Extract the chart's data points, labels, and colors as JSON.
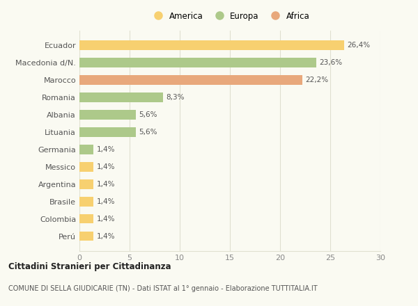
{
  "categories": [
    "Ecuador",
    "Macedonia d/N.",
    "Marocco",
    "Romania",
    "Albania",
    "Lituania",
    "Germania",
    "Messico",
    "Argentina",
    "Brasile",
    "Colombia",
    "Perú"
  ],
  "values": [
    26.4,
    23.6,
    22.2,
    8.3,
    5.6,
    5.6,
    1.4,
    1.4,
    1.4,
    1.4,
    1.4,
    1.4
  ],
  "colors": [
    "#f7d070",
    "#adc98a",
    "#e8a87c",
    "#adc98a",
    "#adc98a",
    "#adc98a",
    "#adc98a",
    "#f7d070",
    "#f7d070",
    "#f7d070",
    "#f7d070",
    "#f7d070"
  ],
  "labels": [
    "26,4%",
    "23,6%",
    "22,2%",
    "8,3%",
    "5,6%",
    "5,6%",
    "1,4%",
    "1,4%",
    "1,4%",
    "1,4%",
    "1,4%",
    "1,4%"
  ],
  "legend_labels": [
    "America",
    "Europa",
    "Africa"
  ],
  "legend_colors": [
    "#f7d070",
    "#adc98a",
    "#e8a87c"
  ],
  "title": "Cittadini Stranieri per Cittadinanza",
  "subtitle": "COMUNE DI SELLA GIUDICARIE (TN) - Dati ISTAT al 1° gennaio - Elaborazione TUTTITALIA.IT",
  "xlim": [
    0,
    30
  ],
  "xticks": [
    0,
    5,
    10,
    15,
    20,
    25,
    30
  ],
  "background_color": "#fafaf2",
  "grid_color": "#e0e0d0"
}
